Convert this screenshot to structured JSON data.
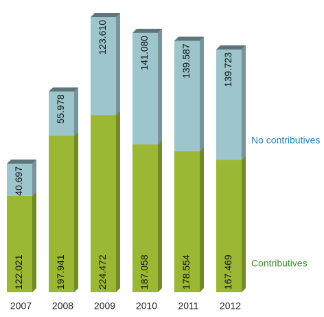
{
  "chart_data": {
    "type": "bar",
    "stacked": true,
    "categories": [
      "2007",
      "2008",
      "2009",
      "2010",
      "2011",
      "2012"
    ],
    "series": [
      {
        "name": "Contributives",
        "color": "#9ab833",
        "legend_color": "#3c8c2c",
        "values": [
          122021,
          197941,
          224472,
          187058,
          178554,
          167469
        ],
        "value_labels": [
          "122.021",
          "197.941",
          "224.472",
          "187.058",
          "178.554",
          "167.469"
        ]
      },
      {
        "name": "No contributives",
        "color": "#9dc5cc",
        "legend_color": "#2b80b4",
        "values": [
          40697,
          55978,
          123610,
          141080,
          139587,
          139723
        ],
        "value_labels": [
          "40.697",
          "55.978",
          "123.610",
          "141.080",
          "139.587",
          "139.723"
        ]
      }
    ]
  }
}
